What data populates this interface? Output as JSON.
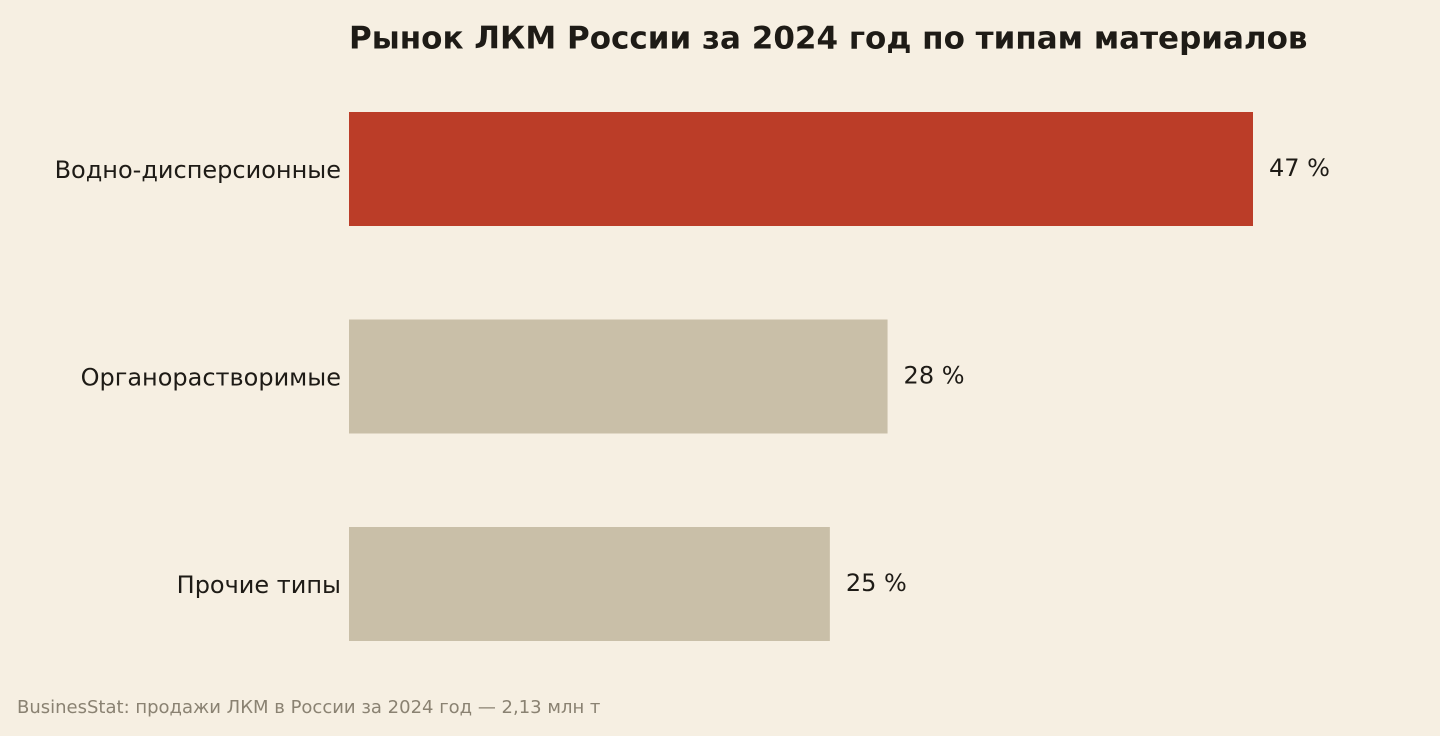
{
  "chart_data": {
    "type": "bar",
    "orientation": "horizontal",
    "title": "Рынок ЛКМ России за 2024 год по типам материалов",
    "categories": [
      "Водно-дисперсионные",
      "Органорастворимые",
      "Прочие типы"
    ],
    "values": [
      47,
      28,
      25
    ],
    "value_labels": [
      "47 %",
      "28 %",
      "25 %"
    ],
    "colors": [
      "#bb3d28",
      "#c9bfa8",
      "#c9bfa8"
    ],
    "note": "BusinesStat: продажи ЛКМ в России за 2024 год — 2,13 млн т"
  }
}
